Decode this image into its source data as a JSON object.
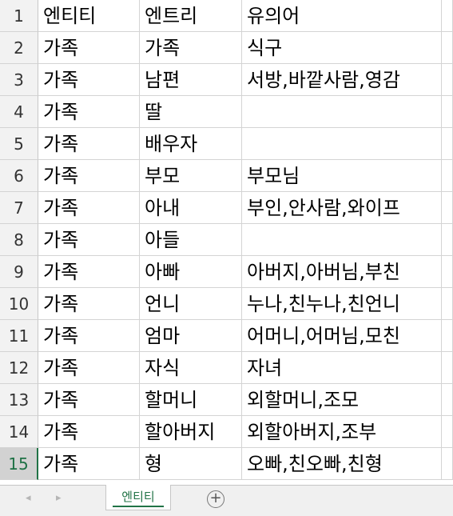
{
  "sheet": {
    "active_row": "15",
    "rows": [
      {
        "num": "1",
        "a": "엔티티",
        "b": "엔트리",
        "c": "유의어"
      },
      {
        "num": "2",
        "a": "가족",
        "b": "가족",
        "c": "식구"
      },
      {
        "num": "3",
        "a": "가족",
        "b": "남편",
        "c": "서방,바깥사람,영감"
      },
      {
        "num": "4",
        "a": "가족",
        "b": "딸",
        "c": ""
      },
      {
        "num": "5",
        "a": "가족",
        "b": "배우자",
        "c": ""
      },
      {
        "num": "6",
        "a": "가족",
        "b": "부모",
        "c": "부모님"
      },
      {
        "num": "7",
        "a": "가족",
        "b": "아내",
        "c": "부인,안사람,와이프"
      },
      {
        "num": "8",
        "a": "가족",
        "b": "아들",
        "c": ""
      },
      {
        "num": "9",
        "a": "가족",
        "b": "아빠",
        "c": "아버지,아버님,부친"
      },
      {
        "num": "10",
        "a": "가족",
        "b": "언니",
        "c": "누나,친누나,친언니"
      },
      {
        "num": "11",
        "a": "가족",
        "b": "엄마",
        "c": "어머니,어머님,모친"
      },
      {
        "num": "12",
        "a": "가족",
        "b": "자식",
        "c": "자녀"
      },
      {
        "num": "13",
        "a": "가족",
        "b": "할머니",
        "c": "외할머니,조모"
      },
      {
        "num": "14",
        "a": "가족",
        "b": "할아버지",
        "c": "외할아버지,조부"
      },
      {
        "num": "15",
        "a": "가족",
        "b": "형",
        "c": "오빠,친오빠,친형"
      }
    ]
  },
  "tabs": {
    "prev_icon": "◂",
    "next_icon": "▸",
    "active_sheet": "엔티티",
    "add_icon": "+"
  }
}
